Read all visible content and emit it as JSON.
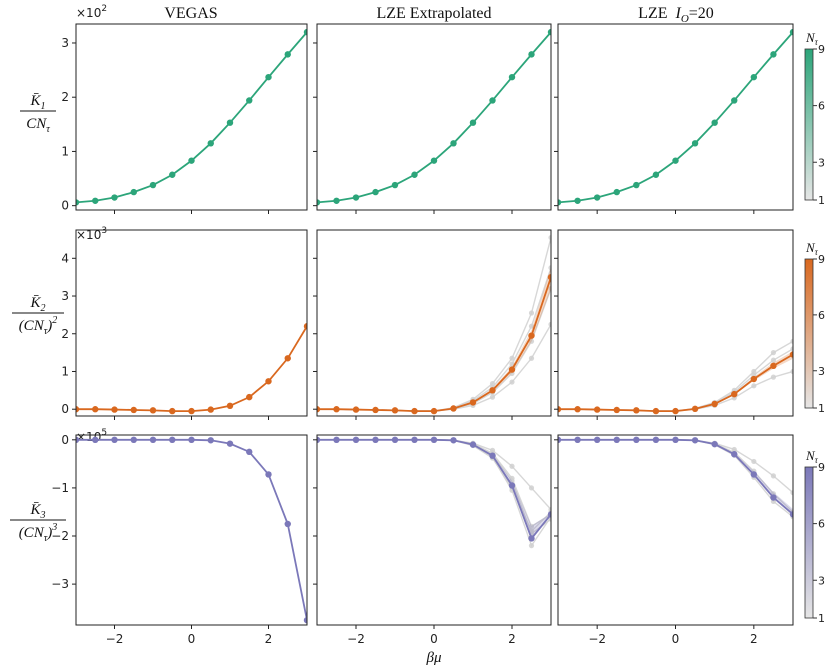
{
  "figure": {
    "column_titles": [
      "VEGAS",
      "LZE Extrapolated",
      "LZE  I_O=20"
    ],
    "column_title_parts": {
      "vegas": "VEGAS",
      "lze_extrap": "LZE Extrapolated",
      "lze_io_prefix": "LZE  ",
      "lze_io_symbol": "I",
      "lze_io_sub": "O",
      "lze_io_suffix": "=20"
    },
    "xlabel": "βμ",
    "colorbar_label": "N_τ",
    "colorbar_ticks": [
      "1",
      "3",
      "6",
      "9"
    ],
    "colors": {
      "row1": "#2ca57a",
      "row2": "#d9681f",
      "row3": "#7b78b9",
      "faint": "#d0d0d0"
    }
  },
  "chart_data": [
    {
      "type": "line",
      "row": 1,
      "ylabel": "K̄1 / (C N_τ)",
      "ylabel_num": "K̄",
      "ylabel_num_sub": "1",
      "ylabel_den": "CN",
      "ylabel_den_sub": "τ",
      "multiplier": "×10",
      "multiplier_exp": "2",
      "ylim": [
        -0.08,
        3.35
      ],
      "yticks": [
        0,
        1,
        2,
        3
      ],
      "ytick_labels": [
        "0",
        "1",
        "2",
        "3"
      ],
      "xlim": [
        -3,
        3
      ],
      "xticks": [
        -2,
        0,
        2
      ],
      "xtick_labels": [
        "−2",
        "0",
        "2"
      ],
      "x": [
        -3,
        -2.5,
        -2,
        -1.5,
        -1,
        -0.5,
        0,
        0.5,
        1,
        1.5,
        2,
        2.5,
        3
      ],
      "panels": [
        {
          "name": "VEGAS",
          "main": [
            0.06,
            0.09,
            0.15,
            0.25,
            0.38,
            0.57,
            0.83,
            1.15,
            1.53,
            1.94,
            2.37,
            2.79,
            3.2
          ],
          "faint": []
        },
        {
          "name": "LZE Extrapolated",
          "main": [
            0.06,
            0.09,
            0.15,
            0.25,
            0.38,
            0.57,
            0.83,
            1.15,
            1.53,
            1.94,
            2.37,
            2.79,
            3.2
          ],
          "faint": []
        },
        {
          "name": "LZE I_O=20",
          "main": [
            0.06,
            0.09,
            0.15,
            0.25,
            0.38,
            0.57,
            0.83,
            1.15,
            1.53,
            1.94,
            2.37,
            2.79,
            3.2
          ],
          "faint": []
        }
      ]
    },
    {
      "type": "line",
      "row": 2,
      "ylabel": "K̄2 / (C N_τ)^2",
      "ylabel_num": "K̄",
      "ylabel_num_sub": "2",
      "ylabel_den": "(CN",
      "ylabel_den_sub": "τ",
      "ylabel_den_close": ")",
      "ylabel_den_pow": "2",
      "multiplier": "×10",
      "multiplier_exp": "3",
      "ylim": [
        -0.18,
        4.75
      ],
      "yticks": [
        0,
        1,
        2,
        3,
        4
      ],
      "ytick_labels": [
        "0",
        "1",
        "2",
        "3",
        "4"
      ],
      "xlim": [
        -3,
        3
      ],
      "xticks": [
        -2,
        0,
        2
      ],
      "xtick_labels": [
        "−2",
        "0",
        "2"
      ],
      "x": [
        -3,
        -2.5,
        -2,
        -1.5,
        -1,
        -0.5,
        0,
        0.5,
        1,
        1.5,
        2,
        2.5,
        3
      ],
      "panels": [
        {
          "name": "VEGAS",
          "main": [
            0,
            0,
            -0.01,
            -0.02,
            -0.03,
            -0.05,
            -0.05,
            -0.01,
            0.09,
            0.32,
            0.74,
            1.35,
            2.2
          ],
          "faint": []
        },
        {
          "name": "LZE Extrapolated",
          "main": [
            0,
            0,
            -0.01,
            -0.02,
            -0.03,
            -0.05,
            -0.05,
            0.02,
            0.18,
            0.5,
            1.05,
            1.95,
            3.5
          ],
          "faint": [
            [
              0,
              0,
              -0.01,
              -0.02,
              -0.03,
              -0.05,
              -0.05,
              0.04,
              0.26,
              0.68,
              1.35,
              2.55,
              4.55
            ],
            [
              0,
              0,
              -0.01,
              -0.02,
              -0.03,
              -0.05,
              -0.05,
              0.0,
              0.1,
              0.32,
              0.72,
              1.35,
              2.25
            ],
            [
              0,
              0,
              -0.01,
              -0.02,
              -0.03,
              -0.05,
              -0.05,
              0.03,
              0.22,
              0.58,
              1.2,
              2.2,
              3.75
            ],
            [
              0,
              0,
              -0.01,
              -0.02,
              -0.03,
              -0.05,
              -0.05,
              0.01,
              0.15,
              0.44,
              0.95,
              1.8,
              3.2
            ]
          ]
        },
        {
          "name": "LZE I_O=20",
          "main": [
            0,
            0,
            -0.01,
            -0.02,
            -0.03,
            -0.05,
            -0.05,
            0.01,
            0.14,
            0.4,
            0.8,
            1.15,
            1.45
          ],
          "faint": [
            [
              0,
              0,
              -0.01,
              -0.02,
              -0.03,
              -0.05,
              -0.05,
              0.02,
              0.18,
              0.5,
              1.0,
              1.5,
              1.8
            ],
            [
              0,
              0,
              -0.01,
              -0.02,
              -0.03,
              -0.05,
              -0.05,
              0.0,
              0.1,
              0.3,
              0.62,
              0.85,
              1.0
            ],
            [
              0,
              0,
              -0.01,
              -0.02,
              -0.03,
              -0.05,
              -0.05,
              0.015,
              0.16,
              0.45,
              0.9,
              1.3,
              1.6
            ]
          ]
        }
      ]
    },
    {
      "type": "line",
      "row": 3,
      "ylabel": "K̄3 / (C N_τ)^3",
      "ylabel_num": "K̄",
      "ylabel_num_sub": "3",
      "ylabel_den": "(CN",
      "ylabel_den_sub": "τ",
      "ylabel_den_close": ")",
      "ylabel_den_pow": "3",
      "multiplier": "×10",
      "multiplier_exp": "5",
      "ylim": [
        -3.85,
        0.1
      ],
      "yticks": [
        0,
        -1,
        -2,
        -3
      ],
      "ytick_labels": [
        "0",
        "−1",
        "−2",
        "−3"
      ],
      "xlim": [
        -3,
        3
      ],
      "xticks": [
        -2,
        0,
        2
      ],
      "xtick_labels": [
        "−2",
        "0",
        "2"
      ],
      "x": [
        -3,
        -2.5,
        -2,
        -1.5,
        -1,
        -0.5,
        0,
        0.5,
        1,
        1.5,
        2,
        2.5,
        3
      ],
      "panels": [
        {
          "name": "VEGAS",
          "main": [
            0,
            0,
            0,
            0,
            0,
            0,
            0,
            -0.01,
            -0.08,
            -0.25,
            -0.72,
            -1.75,
            -3.75
          ],
          "faint": []
        },
        {
          "name": "LZE Extrapolated",
          "main": [
            0,
            0,
            0,
            0,
            0,
            0,
            0,
            -0.01,
            -0.1,
            -0.33,
            -0.95,
            -2.05,
            -1.55
          ],
          "faint": [
            [
              0,
              0,
              0,
              0,
              0,
              0,
              0,
              -0.01,
              -0.08,
              -0.28,
              -0.8,
              -1.8,
              -1.55
            ],
            [
              0,
              0,
              0,
              0,
              0,
              0,
              0,
              -0.01,
              -0.11,
              -0.36,
              -1.05,
              -2.2,
              -1.6
            ],
            [
              0,
              0,
              0,
              0,
              0,
              0,
              0,
              -0.01,
              -0.09,
              -0.3,
              -0.85,
              -1.95,
              -1.65
            ],
            [
              0,
              0,
              0,
              0,
              0,
              0,
              0,
              -0.01,
              -0.12,
              -0.38,
              -1.0,
              -1.9,
              -1.5
            ],
            [
              0,
              0,
              0,
              0,
              0,
              0,
              0,
              -0.01,
              -0.07,
              -0.22,
              -0.55,
              -1.0,
              -1.45
            ]
          ]
        },
        {
          "name": "LZE I_O=20",
          "main": [
            0,
            0,
            0,
            0,
            0,
            0,
            0,
            -0.01,
            -0.09,
            -0.3,
            -0.72,
            -1.2,
            -1.55
          ],
          "faint": [
            [
              0,
              0,
              0,
              0,
              0,
              0,
              0,
              -0.01,
              -0.08,
              -0.26,
              -0.65,
              -1.12,
              -1.5
            ],
            [
              0,
              0,
              0,
              0,
              0,
              0,
              0,
              -0.01,
              -0.07,
              -0.2,
              -0.45,
              -0.75,
              -1.1
            ],
            [
              0,
              0,
              0,
              0,
              0,
              0,
              0,
              -0.01,
              -0.1,
              -0.32,
              -0.78,
              -1.28,
              -1.6
            ]
          ]
        }
      ]
    }
  ]
}
